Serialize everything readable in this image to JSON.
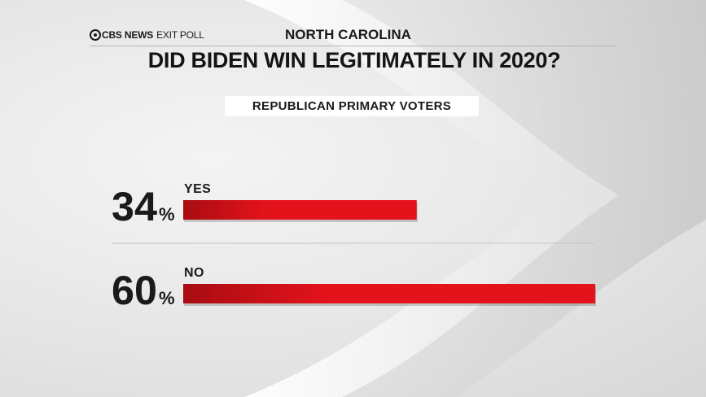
{
  "header": {
    "brand_news": "CBS NEWS",
    "brand_poll": "EXIT POLL",
    "state": "NORTH CAROLINA"
  },
  "title": "DID BIDEN WIN LEGITIMATELY IN 2020?",
  "subtitle": "REPUBLICAN PRIMARY VOTERS",
  "colors": {
    "bar_red": "#e4131b",
    "bar_dark": "#a80c12",
    "text": "#1a1a1a"
  },
  "chart_data": {
    "type": "bar",
    "orientation": "horizontal",
    "title": "DID BIDEN WIN LEGITIMATELY IN 2020?",
    "subtitle": "REPUBLICAN PRIMARY VOTERS",
    "categories": [
      "YES",
      "NO"
    ],
    "values": [
      34,
      60
    ],
    "value_suffix": "%",
    "xlim": [
      0,
      60
    ],
    "grid": false,
    "legend": "none"
  }
}
